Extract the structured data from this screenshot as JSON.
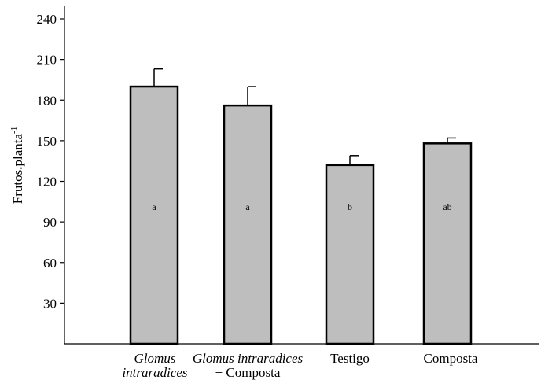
{
  "chart_data": {
    "type": "bar",
    "ylabel": "Frutos.planta",
    "ylabel_superscript": "-1",
    "ylim": [
      0,
      240
    ],
    "yticks": [
      "30",
      "60",
      "90",
      "120",
      "150",
      "180",
      "210",
      "240"
    ],
    "grid": false,
    "categories": [
      {
        "line1": "Glomus",
        "line2": "intraradices",
        "line1_italic": true,
        "line2_italic": true
      },
      {
        "line1": "Glomus  intraradices",
        "line2": "+ Composta",
        "line1_italic": true,
        "line2_italic": false
      },
      {
        "line1": "Testigo",
        "line2": "",
        "line1_italic": false,
        "line2_italic": false
      },
      {
        "line1": "Composta",
        "line2": "",
        "line1_italic": false,
        "line2_italic": false
      }
    ],
    "values": [
      190,
      176,
      132,
      148
    ],
    "errors": [
      13,
      14,
      7,
      4
    ],
    "letters": [
      "a",
      "a",
      "b",
      "ab"
    ],
    "bar_color": "#bebebe",
    "edge_color": "#000000"
  }
}
